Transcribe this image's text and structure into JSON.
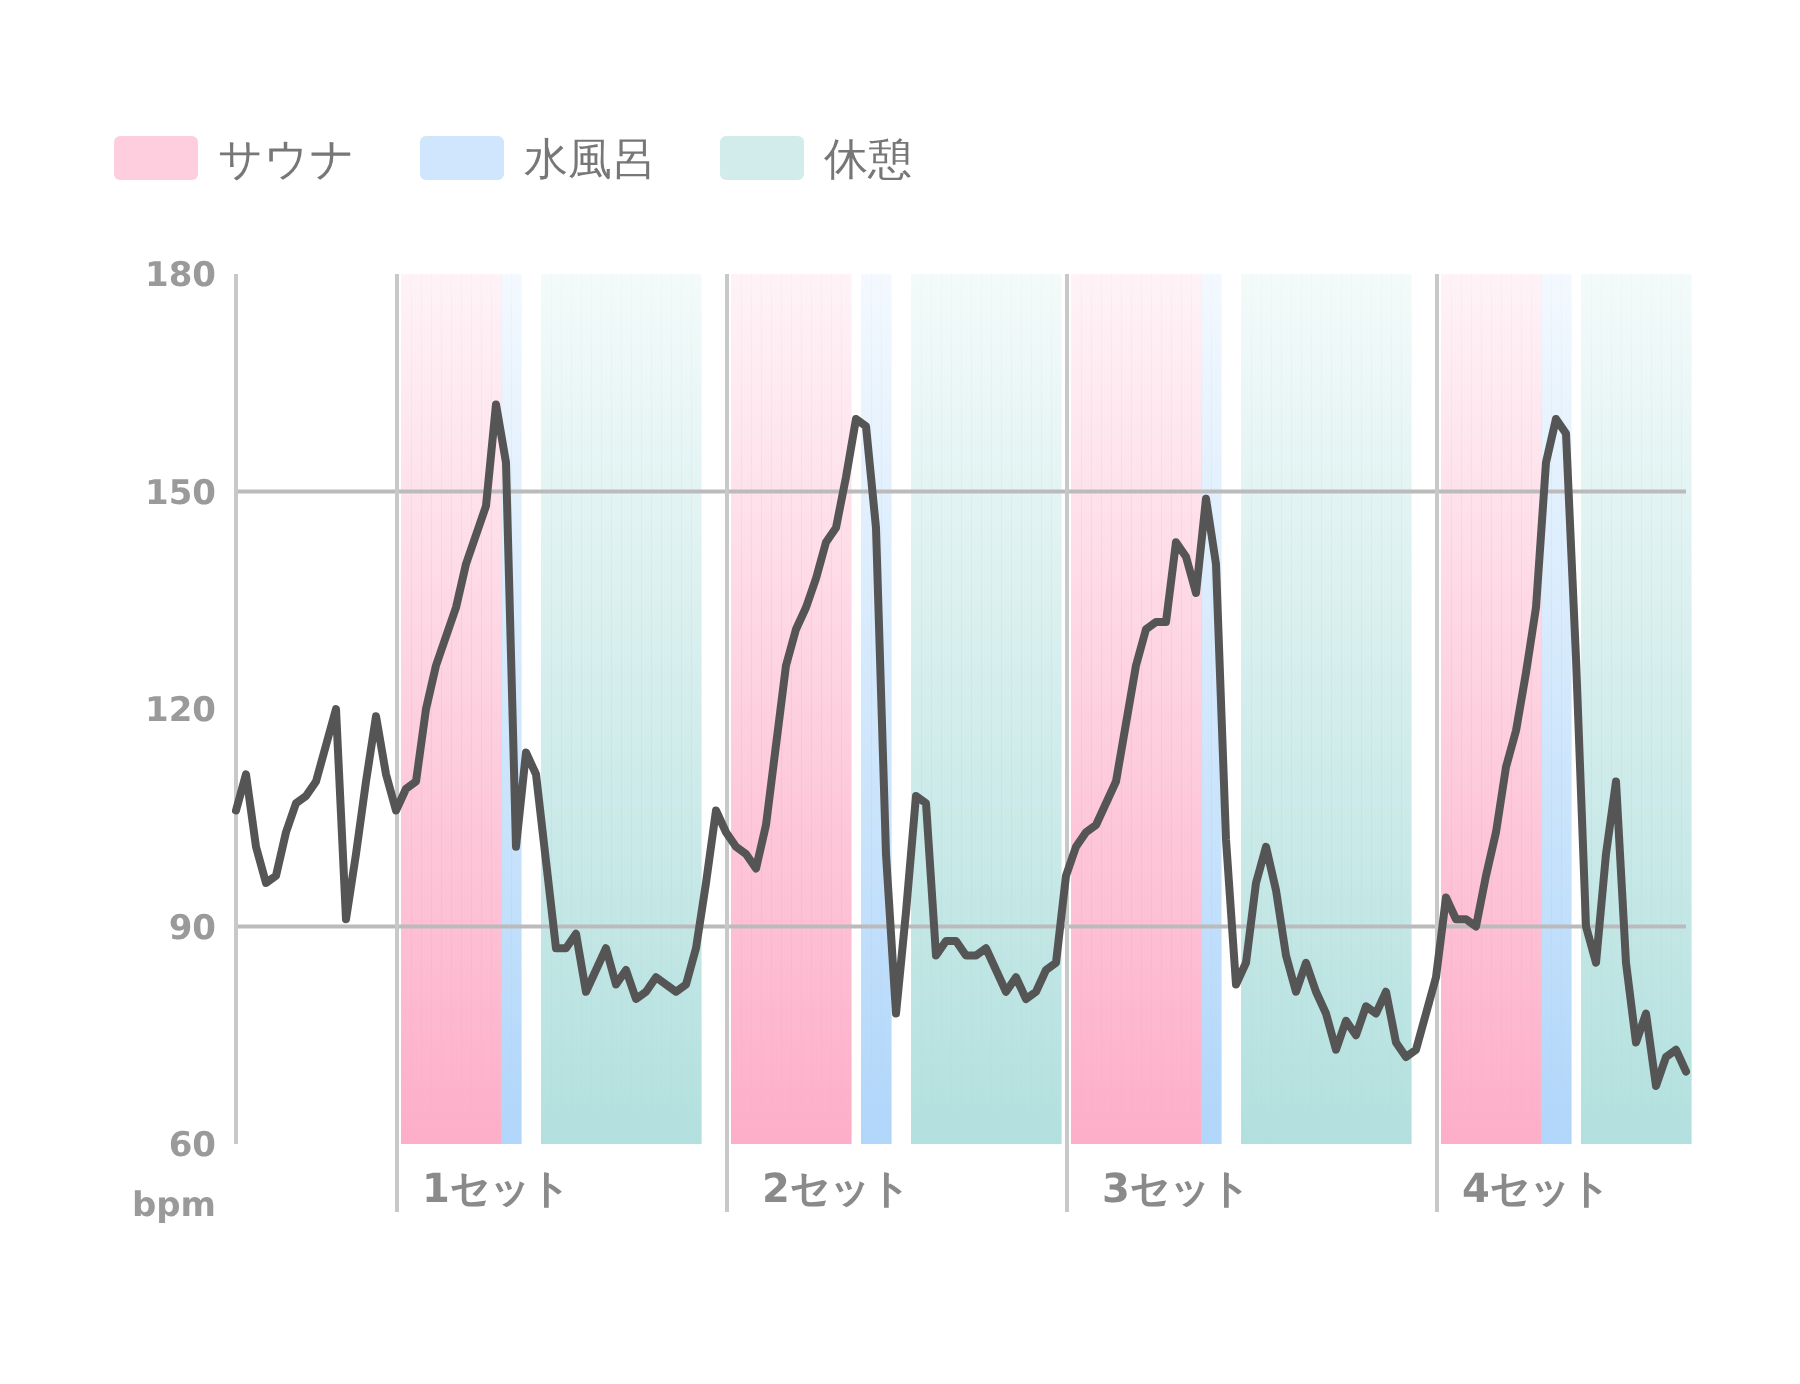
{
  "chart_data": {
    "type": "line",
    "ylabel": "bpm",
    "categories": [
      null,
      null,
      null,
      null,
      null,
      null,
      null,
      null,
      null,
      null,
      null,
      null,
      null,
      null,
      null,
      null,
      null,
      null,
      null,
      null,
      null,
      null,
      null,
      null,
      null,
      null,
      "1セット",
      null,
      null,
      null,
      null,
      null,
      null,
      null,
      null,
      null,
      null,
      null,
      null,
      null,
      null,
      null,
      null,
      null,
      null,
      null,
      null,
      null,
      null,
      null,
      null,
      null,
      null,
      null,
      null,
      null,
      null,
      null,
      null,
      null,
      "2セット",
      null,
      null,
      null,
      null,
      null,
      null,
      null,
      null,
      null,
      null,
      null,
      null,
      null,
      null,
      null,
      null,
      null,
      null,
      null,
      null,
      null,
      null,
      null,
      null,
      null,
      null,
      null,
      null,
      null,
      null,
      null,
      null,
      null,
      "3セット",
      null,
      null,
      null,
      null,
      null,
      null,
      null,
      null,
      null,
      null,
      null,
      null,
      null,
      null,
      null,
      null,
      null,
      null,
      null,
      null,
      null,
      null,
      null,
      null,
      null,
      null,
      null,
      null,
      null,
      null,
      null,
      null,
      null,
      null,
      null,
      "4セット",
      null,
      null,
      null,
      null,
      null,
      null,
      null,
      null,
      null,
      null,
      null,
      null,
      null,
      null,
      null
    ],
    "ylim": [
      60,
      180
    ],
    "yticks": [
      60,
      90,
      120,
      150,
      180
    ],
    "legend": "top left",
    "line_style": "solid",
    "marker": "none",
    "ref_lines": [
      {
        "axis": "y",
        "value": 90,
        "color": "#bbbbbb"
      },
      {
        "axis": "y",
        "value": 150,
        "color": "#bbbbbb"
      }
    ],
    "series": [
      {
        "name": "サウナ",
        "type": "bar",
        "color": "#fdaec8",
        "values": [
          null,
          null,
          null,
          null,
          null,
          null,
          null,
          null,
          null,
          null,
          null,
          null,
          null,
          null,
          null,
          null,
          null,
          180,
          180,
          180,
          180,
          180,
          180,
          180,
          180,
          180,
          180,
          null,
          null,
          null,
          null,
          null,
          null,
          null,
          null,
          null,
          null,
          null,
          null,
          null,
          null,
          null,
          null,
          null,
          null,
          null,
          null,
          null,
          null,
          null,
          180,
          180,
          180,
          180,
          180,
          180,
          180,
          180,
          180,
          180,
          180,
          180,
          null,
          null,
          null,
          null,
          null,
          null,
          null,
          null,
          null,
          null,
          null,
          null,
          null,
          null,
          null,
          null,
          null,
          null,
          null,
          null,
          null,
          null,
          180,
          180,
          180,
          180,
          180,
          180,
          180,
          180,
          180,
          180,
          180,
          180,
          180,
          null,
          null,
          null,
          null,
          null,
          null,
          null,
          null,
          null,
          null,
          null,
          null,
          null,
          null,
          null,
          null,
          null,
          null,
          null,
          null,
          null,
          null,
          null,
          null,
          180,
          180,
          180,
          180,
          180,
          180,
          180,
          180,
          180,
          180,
          null,
          null,
          null,
          null,
          null,
          null,
          null,
          null,
          null,
          null,
          null,
          null,
          null,
          null,
          null
        ]
      },
      {
        "name": "水風呂",
        "type": "bar",
        "color": "#b0d6fa",
        "values": [
          null,
          null,
          null,
          null,
          null,
          null,
          null,
          null,
          null,
          null,
          null,
          null,
          null,
          null,
          null,
          null,
          null,
          null,
          null,
          null,
          null,
          null,
          null,
          null,
          null,
          null,
          null,
          180,
          180,
          null,
          null,
          null,
          null,
          null,
          null,
          null,
          null,
          null,
          null,
          null,
          null,
          null,
          null,
          null,
          null,
          null,
          null,
          null,
          null,
          null,
          null,
          null,
          null,
          null,
          null,
          null,
          null,
          null,
          null,
          null,
          null,
          null,
          null,
          180,
          180,
          180,
          null,
          null,
          null,
          null,
          null,
          null,
          null,
          null,
          null,
          null,
          null,
          null,
          null,
          null,
          null,
          null,
          null,
          null,
          null,
          null,
          null,
          null,
          null,
          null,
          null,
          null,
          null,
          null,
          null,
          null,
          null,
          180,
          180,
          null,
          null,
          null,
          null,
          null,
          null,
          null,
          null,
          null,
          null,
          null,
          null,
          null,
          null,
          null,
          null,
          null,
          null,
          null,
          null,
          null,
          null,
          null,
          null,
          null,
          null,
          null,
          null,
          null,
          null,
          null,
          null,
          180,
          180,
          180,
          null,
          null,
          null,
          null,
          null,
          null,
          null,
          null,
          null,
          null,
          null,
          null
        ]
      },
      {
        "name": "休憩",
        "type": "bar",
        "color": "#b2e0de",
        "values": [
          null,
          null,
          null,
          null,
          null,
          null,
          null,
          null,
          null,
          null,
          null,
          null,
          null,
          null,
          null,
          null,
          null,
          null,
          null,
          null,
          null,
          null,
          null,
          null,
          null,
          null,
          null,
          null,
          null,
          null,
          null,
          180,
          180,
          180,
          180,
          180,
          180,
          180,
          180,
          180,
          180,
          180,
          180,
          180,
          180,
          180,
          180,
          null,
          null,
          null,
          null,
          null,
          null,
          null,
          null,
          null,
          null,
          null,
          null,
          null,
          null,
          null,
          null,
          null,
          null,
          null,
          null,
          null,
          180,
          180,
          180,
          180,
          180,
          180,
          180,
          180,
          180,
          180,
          180,
          180,
          180,
          180,
          180,
          null,
          null,
          null,
          null,
          null,
          null,
          null,
          null,
          null,
          null,
          null,
          null,
          null,
          null,
          null,
          null,
          null,
          null,
          180,
          180,
          180,
          180,
          180,
          180,
          180,
          180,
          180,
          180,
          180,
          180,
          180,
          180,
          180,
          180,
          180,
          null,
          null,
          null,
          null,
          null,
          null,
          null,
          null,
          null,
          null,
          null,
          null,
          null,
          null,
          null,
          null,
          null,
          180,
          180,
          180,
          180,
          180,
          180,
          180,
          180,
          180,
          180,
          180
        ]
      },
      {
        "color": "#555555",
        "values": [
          106,
          111,
          101,
          96,
          97,
          103,
          107,
          108,
          110,
          115,
          120,
          91,
          100,
          110,
          119,
          111,
          106,
          109,
          110,
          120,
          126,
          130,
          134,
          140,
          144,
          148,
          162,
          154,
          101,
          114,
          111,
          99,
          87,
          87,
          89,
          81,
          84,
          87,
          82,
          84,
          80,
          81,
          83,
          82,
          81,
          82,
          87,
          96,
          106,
          103,
          101,
          100,
          98,
          104,
          115,
          126,
          131,
          134,
          138,
          143,
          145,
          152,
          160,
          159,
          145,
          100,
          78,
          92,
          108,
          107,
          86,
          88,
          88,
          86,
          86,
          87,
          84,
          81,
          83,
          80,
          81,
          84,
          85,
          97,
          101,
          103,
          104,
          107,
          110,
          118,
          126,
          131,
          132,
          132,
          143,
          141,
          136,
          149,
          140,
          102,
          82,
          85,
          96,
          101,
          95,
          86,
          81,
          85,
          81,
          78,
          73,
          77,
          75,
          79,
          78,
          81,
          74,
          72,
          73,
          78,
          83,
          94,
          91,
          91,
          90,
          97,
          103,
          112,
          117,
          125,
          134,
          154,
          160,
          158,
          127,
          90,
          85,
          100,
          110,
          85,
          74,
          78,
          68,
          72,
          73,
          70
        ]
      }
    ]
  }
}
